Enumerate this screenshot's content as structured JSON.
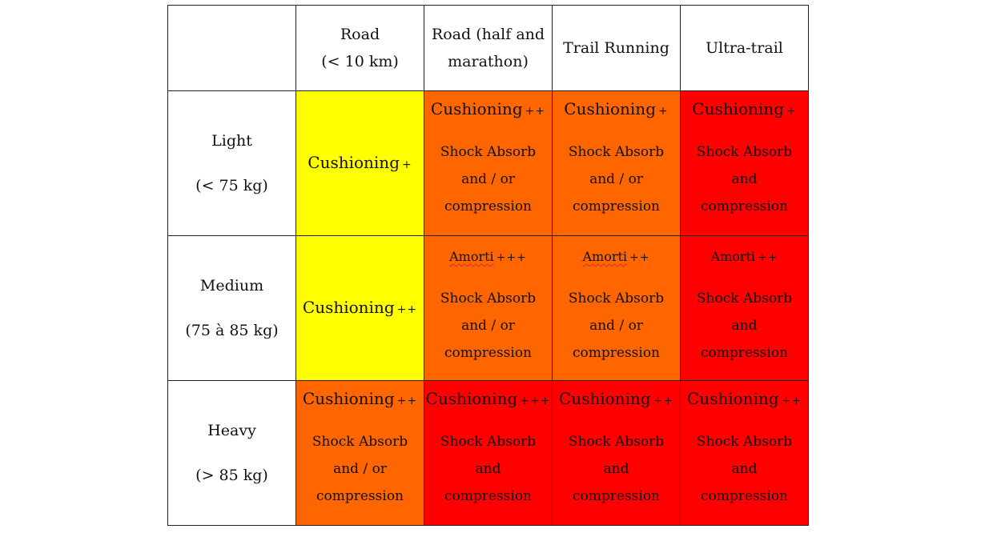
{
  "colors": {
    "yellow": "#ffff00",
    "orange": "#ff6600",
    "red": "#ff0000"
  },
  "headers": [
    [
      "Road",
      "(< 10 km)"
    ],
    [
      "Road (half and",
      "marathon)"
    ],
    [
      "Trail Running"
    ],
    [
      "Ultra-trail"
    ]
  ],
  "rows": [
    {
      "label": "Light",
      "weight": "(< 75 kg)",
      "cells": [
        {
          "title": "Cushioning",
          "plus": "+",
          "desc": []
        },
        {
          "title": "Cushioning",
          "plus": "++",
          "desc": [
            "Shock Absorb",
            "and / or",
            "compression"
          ]
        },
        {
          "title": "Cushioning",
          "plus": "+",
          "desc": [
            "Shock Absorb",
            "and / or",
            "compression"
          ]
        },
        {
          "title": "Cushioning",
          "plus": "+",
          "desc": [
            "Shock Absorb",
            "and",
            "compression"
          ]
        }
      ]
    },
    {
      "label": "Medium",
      "weight": "(75 à 85 kg)",
      "cells": [
        {
          "title": "Cushioning",
          "plus": "++",
          "desc": []
        },
        {
          "title": "Amorti",
          "plus": "+++",
          "desc": [
            "Shock Absorb",
            "and / or",
            "compression"
          ]
        },
        {
          "title": "Amorti",
          "plus": "++",
          "desc": [
            "Shock Absorb",
            "and / or",
            "compression"
          ]
        },
        {
          "title": "Amorti",
          "plus": "++",
          "desc": [
            "Shock Absorb",
            "and",
            "compression"
          ]
        }
      ]
    },
    {
      "label": "Heavy",
      "weight": "(> 85 kg)",
      "cells": [
        {
          "title": "Cushioning",
          "plus": "++",
          "desc": [
            "Shock Absorb",
            "and / or",
            "compression"
          ]
        },
        {
          "title": "Cushioning",
          "plus": "+++",
          "desc": [
            "Shock Absorb",
            "and",
            "compression"
          ]
        },
        {
          "title": "Cushioning",
          "plus": "++",
          "desc": [
            "Shock Absorb",
            "and",
            "compression"
          ]
        },
        {
          "title": "Cushioning",
          "plus": "++",
          "desc": [
            "Shock Absorb",
            "and",
            "compression"
          ]
        }
      ]
    }
  ]
}
